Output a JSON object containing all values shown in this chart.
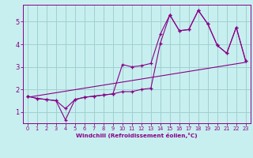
{
  "xlabel": "Windchill (Refroidissement éolien,°C)",
  "xlim": [
    -0.5,
    23.5
  ],
  "ylim": [
    0.5,
    5.75
  ],
  "xticks": [
    0,
    1,
    2,
    3,
    4,
    5,
    6,
    7,
    8,
    9,
    10,
    11,
    12,
    13,
    14,
    15,
    16,
    17,
    18,
    19,
    20,
    21,
    22,
    23
  ],
  "yticks": [
    1,
    2,
    3,
    4,
    5
  ],
  "background_color": "#c8efef",
  "grid_color": "#a0d0d0",
  "line_color": "#880088",
  "line1_x": [
    0,
    1,
    2,
    3,
    4,
    5,
    6,
    7,
    8,
    9,
    10,
    11,
    12,
    13,
    14,
    15,
    16,
    17,
    18,
    19,
    20,
    21,
    22,
    23
  ],
  "line1_y": [
    1.7,
    1.6,
    1.55,
    1.5,
    1.15,
    1.55,
    1.65,
    1.7,
    1.75,
    1.8,
    1.9,
    1.9,
    2.0,
    2.05,
    4.05,
    5.3,
    4.6,
    4.65,
    5.5,
    4.9,
    3.95,
    3.6,
    4.75,
    3.25
  ],
  "line2_x": [
    0,
    1,
    2,
    3,
    4,
    5,
    6,
    7,
    8,
    9,
    10,
    11,
    12,
    13,
    14,
    15,
    16,
    17,
    18,
    19,
    20,
    21,
    22,
    23
  ],
  "line2_y": [
    1.7,
    1.6,
    1.55,
    1.5,
    0.65,
    1.55,
    1.65,
    1.7,
    1.75,
    1.8,
    3.1,
    3.0,
    3.05,
    3.15,
    4.45,
    5.3,
    4.6,
    4.65,
    5.5,
    4.9,
    3.95,
    3.6,
    4.75,
    3.25
  ],
  "line3_x": [
    0,
    23
  ],
  "line3_y": [
    1.65,
    3.2
  ]
}
